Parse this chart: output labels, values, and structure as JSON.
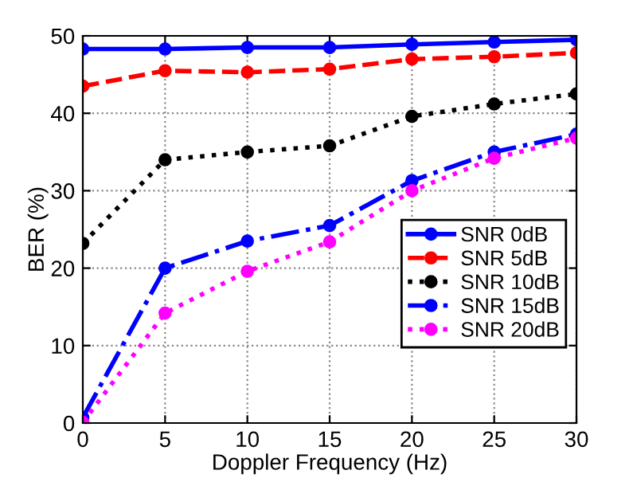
{
  "chart_data": {
    "type": "line",
    "xlabel": "Doppler Frequency (Hz)",
    "ylabel": "BER (%)",
    "x": [
      0,
      5,
      10,
      15,
      20,
      25,
      30
    ],
    "series": [
      {
        "name": "SNR 0dB",
        "color": "#0000ff",
        "line_style": "solid",
        "values": [
          48.3,
          48.3,
          48.5,
          48.5,
          48.9,
          49.2,
          49.5
        ]
      },
      {
        "name": "SNR 5dB",
        "color": "#ff0000",
        "line_style": "dashed",
        "values": [
          43.5,
          45.5,
          45.3,
          45.7,
          47.0,
          47.3,
          47.8
        ]
      },
      {
        "name": "SNR 10dB",
        "color": "#000000",
        "line_style": "dotted",
        "values": [
          23.2,
          34.0,
          35.0,
          35.8,
          39.6,
          41.2,
          42.5
        ]
      },
      {
        "name": "SNR 15dB",
        "color": "#0000ff",
        "line_style": "dashdot",
        "values": [
          0.7,
          20.0,
          23.5,
          25.5,
          31.3,
          35.0,
          37.3
        ]
      },
      {
        "name": "SNR 20dB",
        "color": "#ff00ff",
        "line_style": "dotted",
        "values": [
          0.1,
          14.2,
          19.6,
          23.4,
          30.0,
          34.2,
          36.8
        ]
      }
    ],
    "xlim": [
      0,
      30
    ],
    "xticks": [
      0,
      5,
      10,
      15,
      20,
      25,
      30
    ],
    "ylim": [
      0,
      50
    ],
    "yticks": [
      0,
      10,
      20,
      30,
      40,
      50
    ],
    "grid": true,
    "legend": "right",
    "marker": "circle"
  }
}
